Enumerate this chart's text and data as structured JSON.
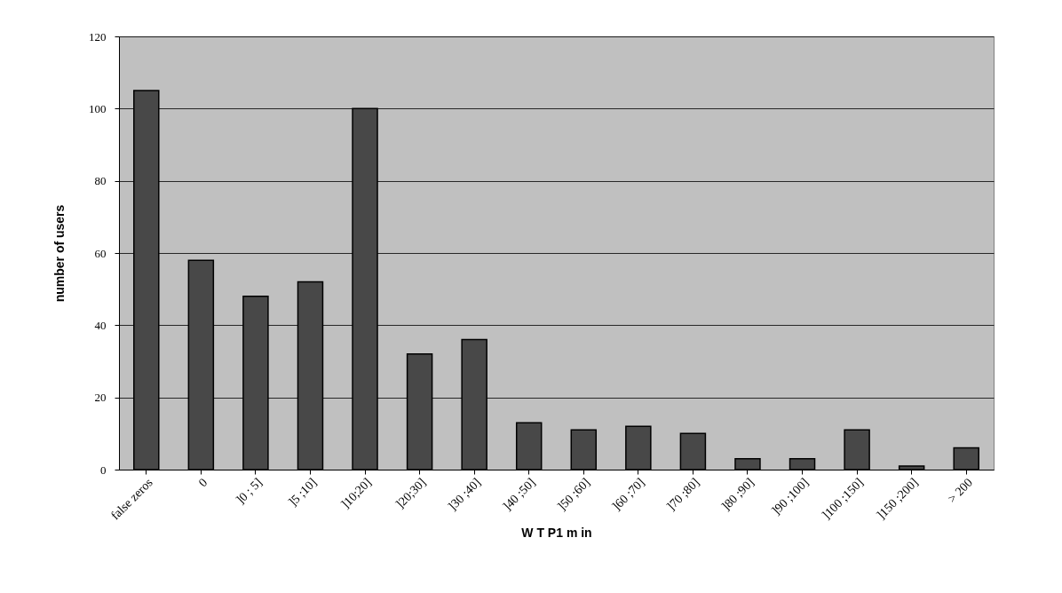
{
  "chart_data": {
    "type": "bar",
    "xlabel": "W T P1 m in",
    "ylabel": "number of users",
    "categories": [
      "false zeros",
      "0",
      "]0 ; 5]",
      "]5 ;10]",
      "]10;20]",
      "]20;30]",
      "]30 ;40]",
      "]40 ;50]",
      "]50 ;60]",
      "]60 ;70]",
      "]70 ;80]",
      "]80 ;90]",
      "]90 ;100]",
      "]100 ;150]",
      "]150 ;200]",
      "> 200"
    ],
    "values": [
      105,
      58,
      48,
      52,
      100,
      32,
      36,
      13,
      11,
      12,
      10,
      3,
      3,
      11,
      1,
      6
    ],
    "color": "#484848",
    "ylim": [
      0,
      120
    ],
    "yticks": [
      0,
      20,
      40,
      60,
      80,
      100,
      120
    ],
    "grid": "y"
  }
}
